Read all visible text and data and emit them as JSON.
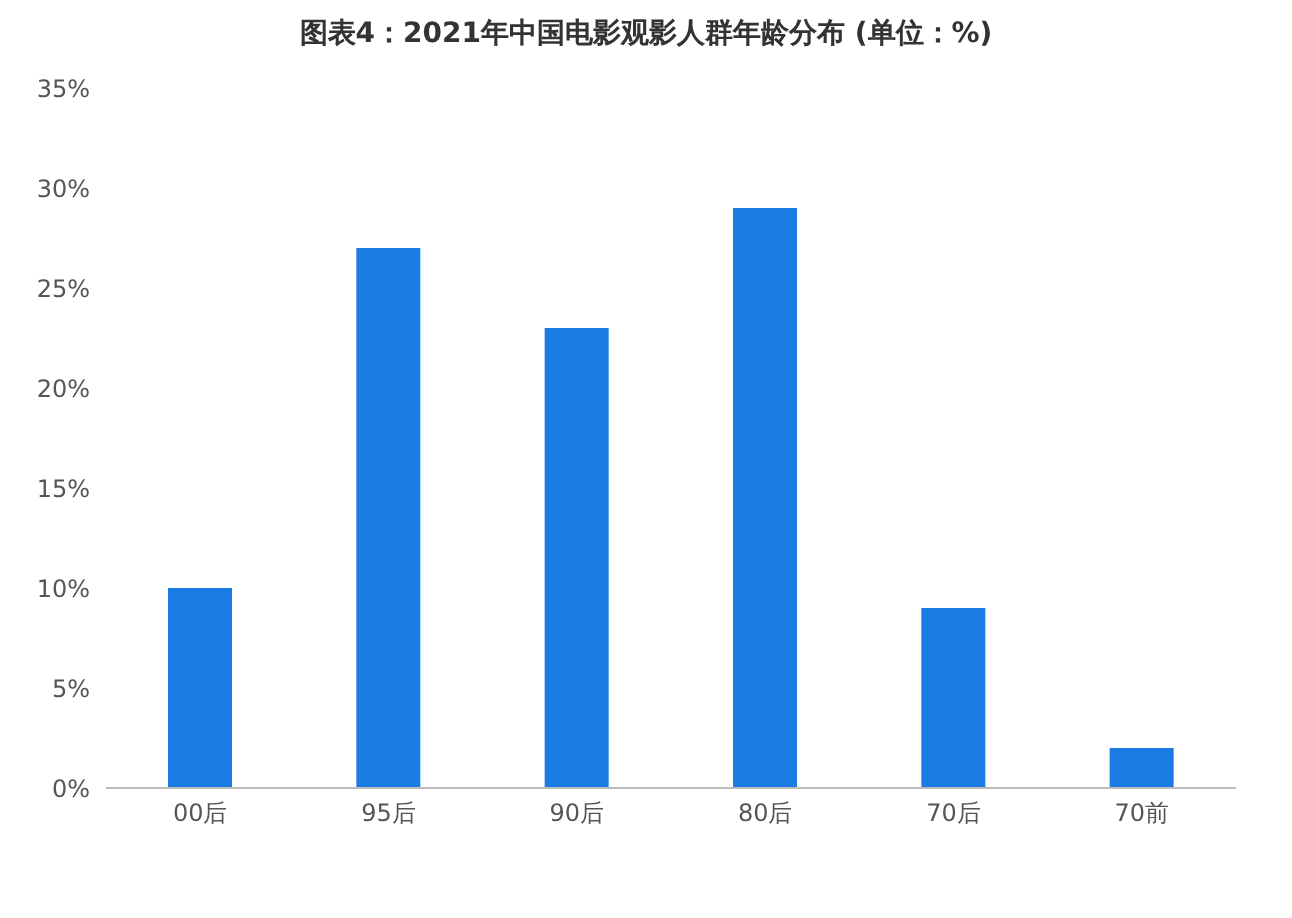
{
  "chart_data": {
    "type": "bar",
    "title": "图表4：2021年中国电影观影人群年龄分布 (单位：%)",
    "categories": [
      "00后",
      "95后",
      "90后",
      "80后",
      "70后",
      "70前"
    ],
    "values": [
      10,
      27,
      23,
      29,
      9,
      2
    ],
    "color": "#1a7be2",
    "ylim": [
      0,
      35
    ],
    "yticks": [
      {
        "value": 0,
        "label": "0%"
      },
      {
        "value": 5,
        "label": "5%"
      },
      {
        "value": 10,
        "label": "10%"
      },
      {
        "value": 15,
        "label": "15%"
      },
      {
        "value": 20,
        "label": "20%"
      },
      {
        "value": 25,
        "label": "25%"
      },
      {
        "value": 30,
        "label": "30%"
      },
      {
        "value": 35,
        "label": "35%"
      }
    ],
    "grid": false,
    "legend": false
  }
}
